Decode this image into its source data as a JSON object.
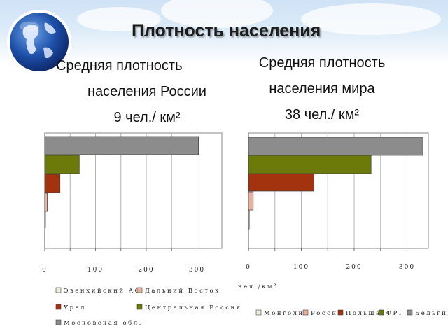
{
  "slide": {
    "title": "Плотность населения"
  },
  "captions": {
    "russia": [
      "Средняя плотность",
      "населения России",
      "9 чел./ км²"
    ],
    "world": [
      "Средняя плотность",
      "населения мира",
      "38 чел./ км²"
    ]
  },
  "colors": {
    "gray": "#8c8c8c",
    "olive": "#6b7a08",
    "rust": "#a3330e",
    "salmon": "#e9b29c",
    "cream": "#eeeeda"
  },
  "chart_data": [
    {
      "type": "bar",
      "orientation": "horizontal",
      "categories": [
        "Эвенкийский АО",
        "Дальний Восток",
        "Урал",
        "Центральная Россия",
        "Московская обл."
      ],
      "values": [
        0.03,
        5,
        30,
        68,
        303
      ],
      "xlim": [
        0,
        350
      ],
      "xticks": [
        "0",
        "100",
        "200",
        "300"
      ],
      "xlabel": "",
      "legend": [
        "Эвенкийский АО",
        "Дальний Восток",
        "Урал",
        "Центральная Россия",
        "Московская обл."
      ],
      "legend_position": "bottom",
      "grid": true
    },
    {
      "type": "bar",
      "orientation": "horizontal",
      "categories": [
        "Монголия",
        "Россия",
        "Польша",
        "ФРГ",
        "Бельгия"
      ],
      "values": [
        1.5,
        9,
        124,
        232,
        330
      ],
      "xlim": [
        0,
        350
      ],
      "xticks": [
        "0",
        "100",
        "200",
        "300"
      ],
      "xlabel": "чел./км²",
      "legend": [
        "Монголия",
        "Россия",
        "Польша",
        "ФРГ",
        "Бельгия"
      ],
      "legend_position": "bottom",
      "grid": true
    }
  ]
}
